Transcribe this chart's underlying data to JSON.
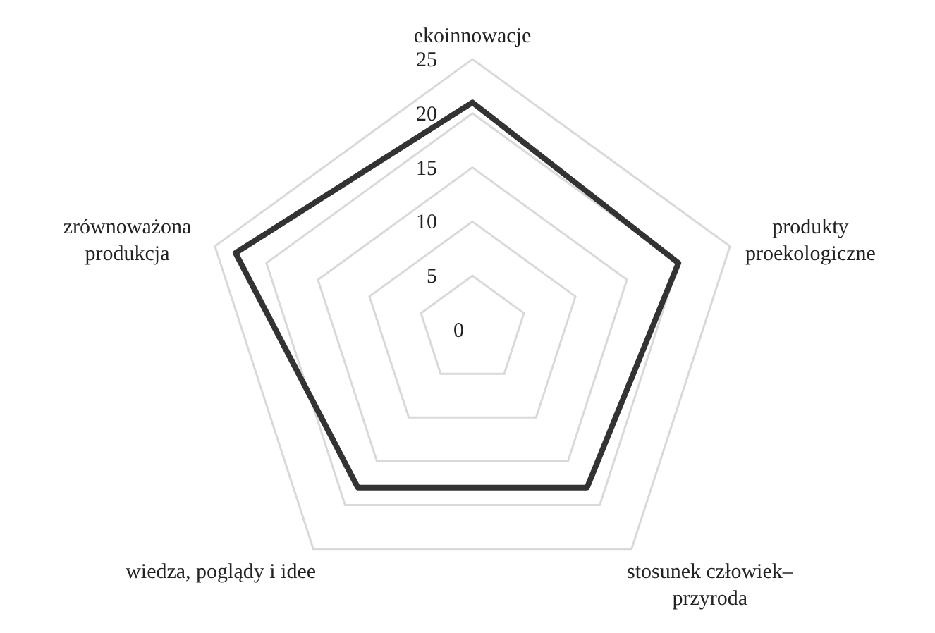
{
  "chart_data": {
    "type": "radar",
    "categories": [
      "ekoinnowacje",
      "produkty\nproekologiczne",
      "stosunek człowiek–\nprzyroda",
      "wiedza, poglądy i idee",
      "zrównoważona\nprodukcja"
    ],
    "series": [
      {
        "color": "#333333",
        "values": [
          21,
          20,
          18,
          18,
          23
        ]
      }
    ],
    "ylim": [
      0,
      25
    ],
    "yticks": [
      0,
      5,
      10,
      15,
      20,
      25
    ],
    "grid": true,
    "marker": "none",
    "line_style": "solid"
  }
}
